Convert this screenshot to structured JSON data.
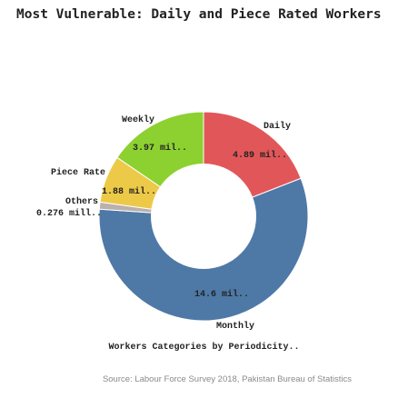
{
  "chart_data": {
    "type": "pie",
    "title": "Most Vulnerable: Daily and Piece Rated Workers",
    "xlabel": "Workers Categories by Periodicity..",
    "source": "Source: Labour Force Survey 2018, Pakistan Bureau of Statistics",
    "slices": [
      {
        "name": "Daily",
        "value": 4.89,
        "label": "4.89 mil..",
        "color": "#e15759"
      },
      {
        "name": "Monthly",
        "value": 14.6,
        "label": "14.6 mil..",
        "color": "#4e79a7"
      },
      {
        "name": "Others",
        "value": 0.276,
        "label": "0.276 mill..",
        "color": "#bab0ac"
      },
      {
        "name": "Piece Rate",
        "value": 1.88,
        "label": "1.88 mil..",
        "color": "#edc948"
      },
      {
        "name": "Weekly",
        "value": 3.97,
        "label": "3.97 mil..",
        "color": "#8cd130"
      }
    ]
  }
}
